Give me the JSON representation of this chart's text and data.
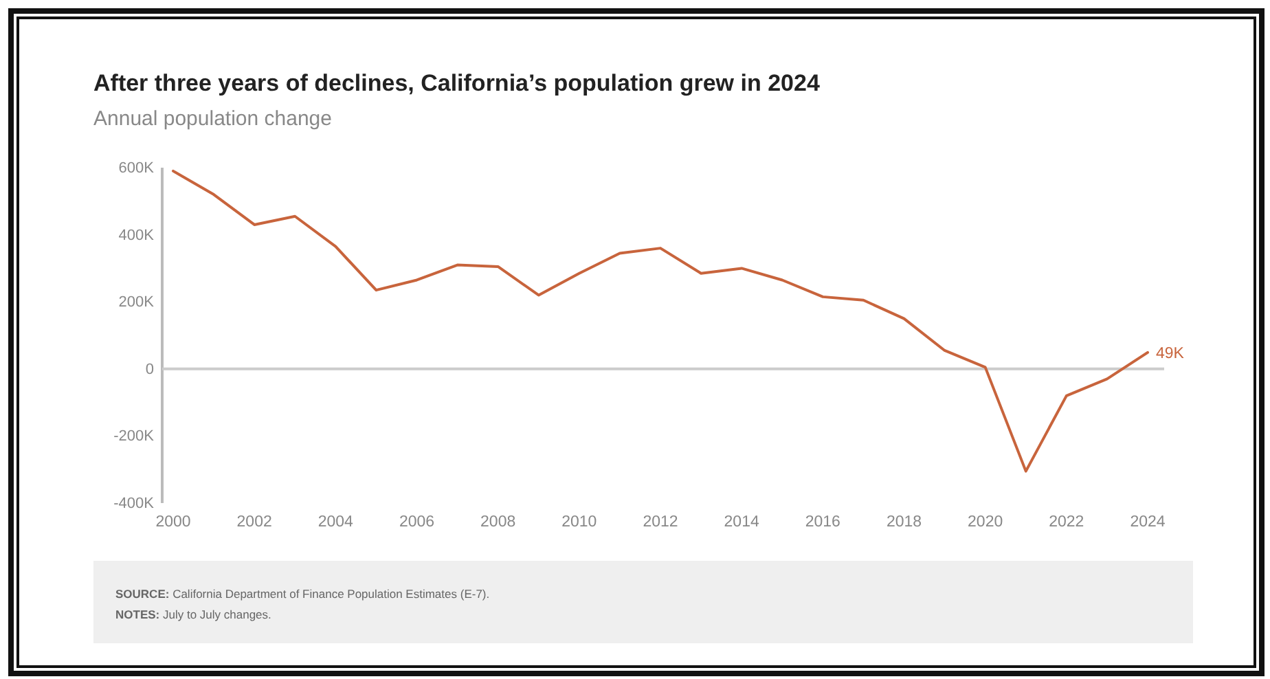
{
  "chart_data": {
    "type": "line",
    "title": "After three years of declines, California’s population grew in 2024",
    "subtitle": "Annual population change",
    "x": [
      2000,
      2001,
      2002,
      2003,
      2004,
      2005,
      2006,
      2007,
      2008,
      2009,
      2010,
      2011,
      2012,
      2013,
      2014,
      2015,
      2016,
      2017,
      2018,
      2019,
      2020,
      2021,
      2022,
      2023,
      2024
    ],
    "series": [
      {
        "color": "#c8643c",
        "values": [
          590,
          520,
          430,
          455,
          365,
          235,
          265,
          310,
          305,
          220,
          285,
          345,
          360,
          285,
          300,
          265,
          215,
          205,
          150,
          55,
          5,
          -305,
          -80,
          -30,
          49
        ]
      }
    ],
    "xlim": [
      2000,
      2024
    ],
    "xticks": [
      2000,
      2002,
      2004,
      2006,
      2008,
      2010,
      2012,
      2014,
      2016,
      2018,
      2020,
      2022,
      2024
    ],
    "ylim": [
      -400,
      600
    ],
    "yticks": [
      {
        "value": -400,
        "label": "-400K"
      },
      {
        "value": -200,
        "label": "-200K"
      },
      0,
      {
        "value": 200,
        "label": "200K"
      },
      {
        "value": 400,
        "label": "400K"
      },
      {
        "value": 600,
        "label": "600K"
      }
    ],
    "ref_lines": [
      {
        "axis": "y",
        "value": 0,
        "color": "#cccccc"
      }
    ],
    "grid": false,
    "marker": "none",
    "line_style": "solid",
    "annotations": [
      {
        "text": "49K",
        "x": 2024,
        "y": 49
      },
      "SOURCE: California Department of Finance Population Estimates (E-7).",
      "NOTES: July to July changes."
    ]
  }
}
